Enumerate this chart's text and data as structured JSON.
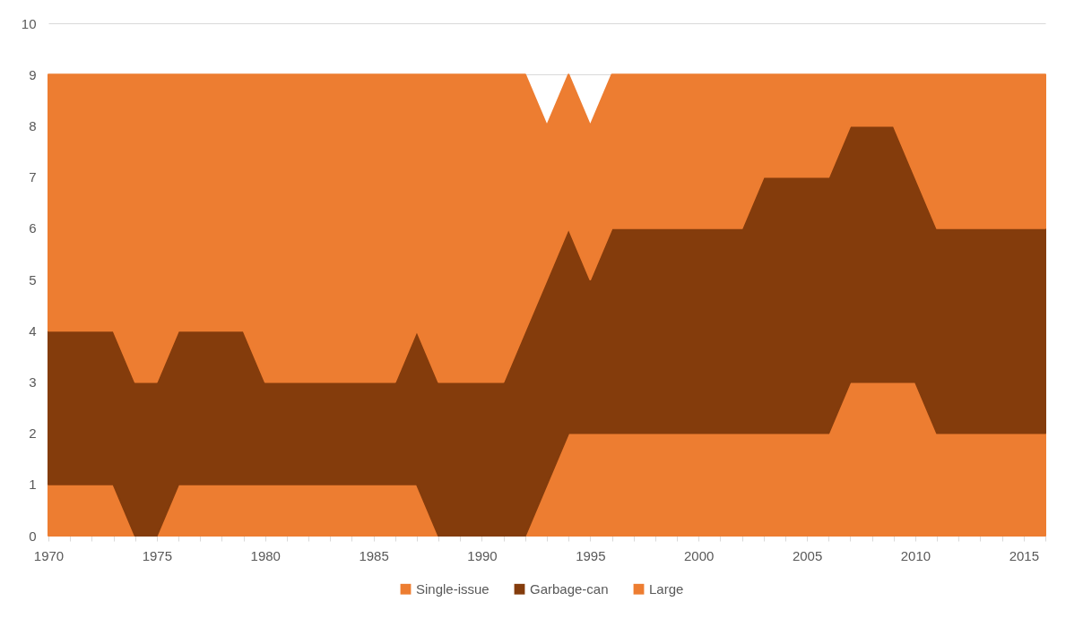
{
  "chart_data": {
    "type": "area",
    "stacked": true,
    "x": [
      1970,
      1971,
      1972,
      1973,
      1974,
      1975,
      1976,
      1977,
      1978,
      1979,
      1980,
      1981,
      1982,
      1983,
      1984,
      1985,
      1986,
      1987,
      1988,
      1989,
      1990,
      1991,
      1992,
      1993,
      1994,
      1995,
      1996,
      1997,
      1998,
      1999,
      2000,
      2001,
      2002,
      2003,
      2004,
      2005,
      2006,
      2007,
      2008,
      2009,
      2010,
      2011,
      2012,
      2013,
      2014,
      2015,
      2016
    ],
    "xlim": [
      1970,
      2016
    ],
    "xticks": [
      1970,
      {
        "value": 1971,
        "label": null
      },
      {
        "value": 1972,
        "label": null
      },
      {
        "value": 1973,
        "label": null
      },
      {
        "value": 1974,
        "label": null
      },
      1975,
      {
        "value": 1976,
        "label": null
      },
      {
        "value": 1977,
        "label": null
      },
      {
        "value": 1978,
        "label": null
      },
      {
        "value": 1979,
        "label": null
      },
      1980,
      {
        "value": 1981,
        "label": null
      },
      {
        "value": 1982,
        "label": null
      },
      {
        "value": 1983,
        "label": null
      },
      {
        "value": 1984,
        "label": null
      },
      1985,
      {
        "value": 1986,
        "label": null
      },
      {
        "value": 1987,
        "label": null
      },
      {
        "value": 1988,
        "label": null
      },
      {
        "value": 1989,
        "label": null
      },
      1990,
      {
        "value": 1991,
        "label": null
      },
      {
        "value": 1992,
        "label": null
      },
      {
        "value": 1993,
        "label": null
      },
      {
        "value": 1994,
        "label": null
      },
      1995,
      {
        "value": 1996,
        "label": null
      },
      {
        "value": 1997,
        "label": null
      },
      {
        "value": 1998,
        "label": null
      },
      {
        "value": 1999,
        "label": null
      },
      2000,
      {
        "value": 2001,
        "label": null
      },
      {
        "value": 2002,
        "label": null
      },
      {
        "value": 2003,
        "label": null
      },
      {
        "value": 2004,
        "label": null
      },
      2005,
      {
        "value": 2006,
        "label": null
      },
      {
        "value": 2007,
        "label": null
      },
      {
        "value": 2008,
        "label": null
      },
      {
        "value": 2009,
        "label": null
      },
      2010,
      {
        "value": 2011,
        "label": null
      },
      {
        "value": 2012,
        "label": null
      },
      {
        "value": 2013,
        "label": null
      },
      {
        "value": 2014,
        "label": null
      },
      2015,
      {
        "value": 2016,
        "label": null
      }
    ],
    "ylim": [
      0,
      10
    ],
    "yticks": [
      0,
      1,
      2,
      3,
      4,
      5,
      6,
      7,
      8,
      9,
      10
    ],
    "grid": "y",
    "legend": "bottom",
    "series": [
      {
        "name": "Single-issue",
        "color": "#ed7d31",
        "values": [
          1,
          1,
          1,
          1,
          0,
          0,
          1,
          1,
          1,
          1,
          1,
          1,
          1,
          1,
          1,
          1,
          1,
          1,
          0,
          0,
          0,
          0,
          0,
          1,
          2,
          2,
          2,
          2,
          2,
          2,
          2,
          2,
          2,
          2,
          2,
          2,
          2,
          3,
          3,
          3,
          3,
          2,
          2,
          2,
          2,
          2,
          2
        ]
      },
      {
        "name": "Garbage-can",
        "color": "#843c0c",
        "values": [
          3,
          3,
          3,
          3,
          3,
          3,
          3,
          3,
          3,
          3,
          2,
          2,
          2,
          2,
          2,
          2,
          2,
          3,
          3,
          3,
          3,
          3,
          4,
          4,
          4,
          3,
          4,
          4,
          4,
          4,
          4,
          4,
          4,
          5,
          5,
          5,
          5,
          5,
          5,
          5,
          4,
          4,
          4,
          4,
          4,
          4,
          4
        ]
      },
      {
        "name": "Large",
        "color": "#ed7d31",
        "values": [
          5,
          5,
          5,
          5,
          6,
          6,
          5,
          5,
          5,
          5,
          6,
          6,
          6,
          6,
          6,
          6,
          6,
          5,
          6,
          6,
          6,
          6,
          5,
          3,
          3,
          3,
          3,
          3,
          3,
          3,
          3,
          3,
          3,
          2,
          2,
          2,
          2,
          1,
          1,
          1,
          2,
          3,
          3,
          3,
          3,
          3,
          3
        ]
      }
    ]
  }
}
